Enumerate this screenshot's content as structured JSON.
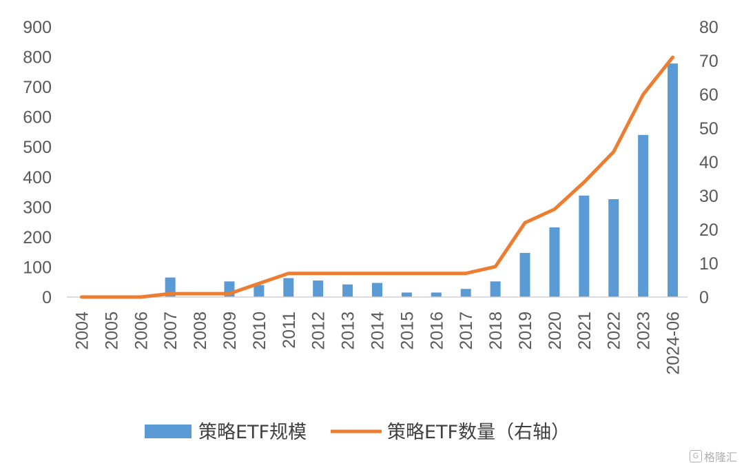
{
  "chart_data": {
    "type": "bar",
    "categories": [
      "2004",
      "2005",
      "2006",
      "2007",
      "2008",
      "2009",
      "2010",
      "2011",
      "2012",
      "2013",
      "2014",
      "2015",
      "2016",
      "2017",
      "2018",
      "2019",
      "2020",
      "2021",
      "2022",
      "2023",
      "2024-06"
    ],
    "series": [
      {
        "name": "策略ETF规模",
        "type": "bar",
        "axis": "left",
        "color": "#5B9BD5",
        "values": [
          0,
          0,
          0,
          65,
          0,
          52,
          40,
          63,
          55,
          42,
          47,
          15,
          15,
          27,
          52,
          147,
          232,
          338,
          326,
          540,
          778
        ]
      },
      {
        "name": "策略ETF数量（右轴）",
        "type": "line",
        "axis": "right",
        "color": "#ED7D31",
        "values": [
          0,
          0,
          0,
          1,
          1,
          1,
          4,
          7,
          7,
          7,
          7,
          7,
          7,
          7,
          9,
          22,
          26,
          34,
          43,
          60,
          71
        ]
      }
    ],
    "y_left": {
      "min": 0,
      "max": 900,
      "ticks": [
        0,
        100,
        200,
        300,
        400,
        500,
        600,
        700,
        800,
        900
      ]
    },
    "y_right": {
      "min": 0,
      "max": 80,
      "ticks": [
        0,
        10,
        20,
        30,
        40,
        50,
        60,
        70,
        80
      ]
    },
    "grid": false,
    "legend_position": "bottom"
  },
  "watermark": {
    "icon": "gelonghui-logo-icon",
    "label": "格隆汇"
  }
}
